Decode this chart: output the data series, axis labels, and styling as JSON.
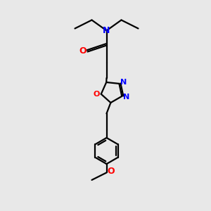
{
  "bg_color": "#e8e8e8",
  "bond_color": "#000000",
  "N_color": "#0000ff",
  "O_color": "#ff0000",
  "line_width": 1.6,
  "fig_size": [
    3.0,
    3.0
  ],
  "dpi": 100,
  "xlim": [
    0,
    10
  ],
  "ylim": [
    0,
    10
  ]
}
